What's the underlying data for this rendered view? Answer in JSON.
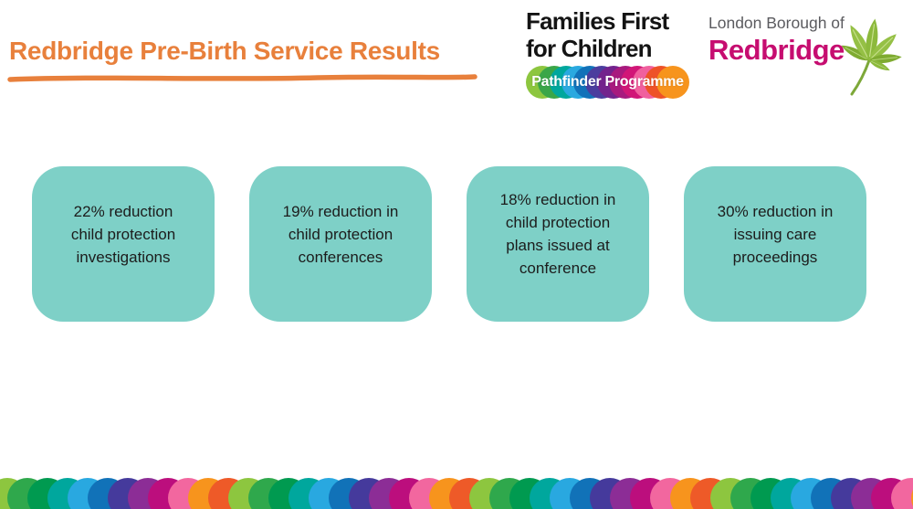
{
  "slide": {
    "title": "Redbridge Pre-Birth Service Results",
    "accent_color": "#e8803c"
  },
  "logos": {
    "families_first": {
      "line1": "Families First",
      "line2": "for Children",
      "badge_label": "Pathfinder Programme",
      "badge_circle_colors": [
        "#8dc63f",
        "#3aa648",
        "#00a79d",
        "#2aa9e0",
        "#1272b9",
        "#4b3d9e",
        "#73238d",
        "#a81a7e",
        "#d11677",
        "#f0609e",
        "#ee5228",
        "#f7941d"
      ]
    },
    "redbridge": {
      "borough_line": "London Borough of",
      "name": "Redbridge",
      "name_color": "#c60d70",
      "leaf_icon": "chestnut-leaf-icon",
      "leaf_color": "#8cb93c"
    }
  },
  "stat_cards": [
    {
      "text": "22% reduction\nchild protection\ninvestigations"
    },
    {
      "text": "19% reduction in\nchild protection\nconferences"
    },
    {
      "text": "18% reduction in\nchild protection\nplans issued at\nconference"
    },
    {
      "text": "30% reduction in\nissuing care\nproceedings"
    }
  ],
  "card_style": {
    "background": "#7ed0c7"
  },
  "footer_border": {
    "circle_colors": [
      "#8dc63f",
      "#2fa84c",
      "#009a50",
      "#00a79d",
      "#29a8e0",
      "#1172b8",
      "#453a9c",
      "#8c2d96",
      "#bc0e7d",
      "#f2679f",
      "#f7941d",
      "#ee5a28"
    ],
    "circle_count": 47
  }
}
